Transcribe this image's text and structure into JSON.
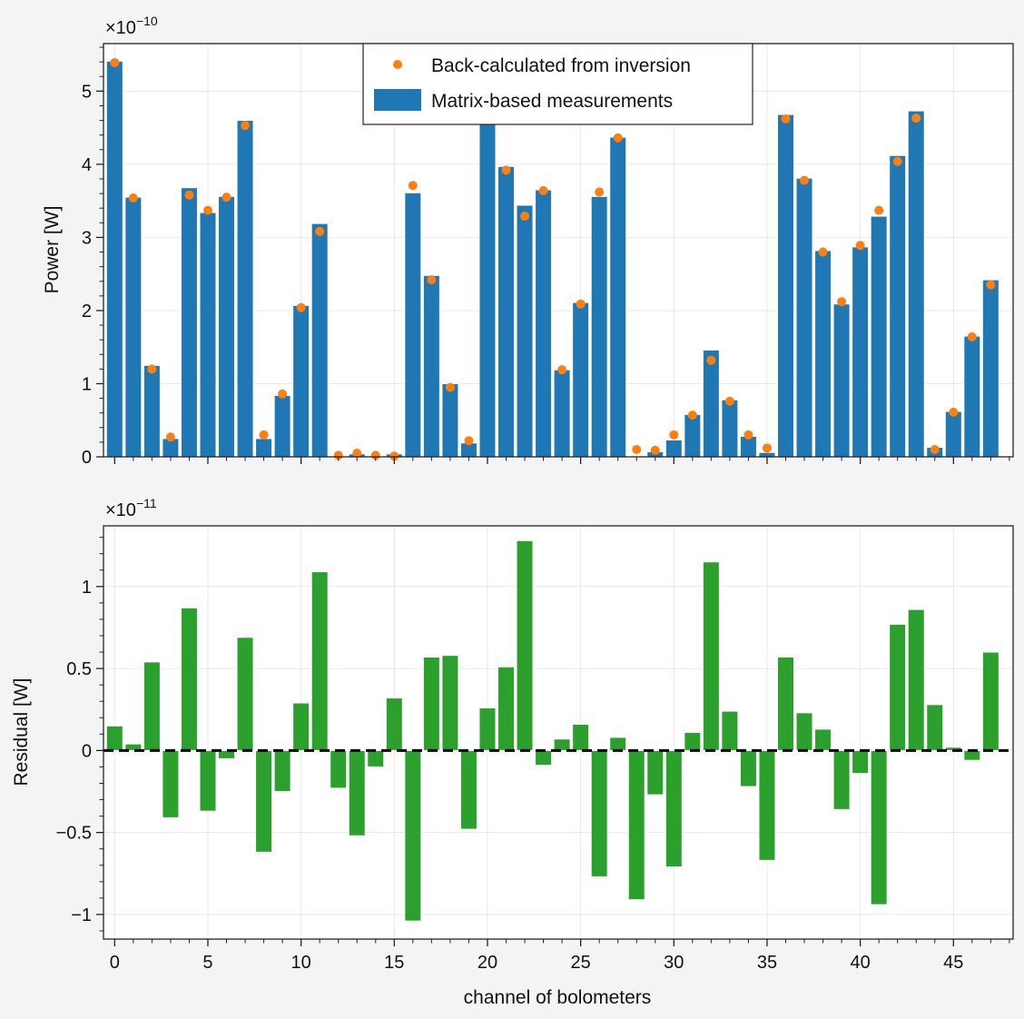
{
  "chart_data": [
    {
      "type": "bar",
      "panel": "top",
      "xlabel": "",
      "ylabel": "Power [W]",
      "offset_text": "×10",
      "offset_exponent": "−10",
      "xlim": [
        -0.6,
        48.2
      ],
      "ylim": [
        0,
        5.65
      ],
      "scale": 1e-10,
      "grid": true,
      "legend_placement": "top-center",
      "x_ticks": [
        0,
        5,
        10,
        15,
        20,
        25,
        30,
        35,
        40,
        45
      ],
      "y_ticks": [
        {
          "value": 0,
          "label": "0"
        },
        {
          "value": 1,
          "label": "1"
        },
        {
          "value": 2,
          "label": "2"
        },
        {
          "value": 3,
          "label": "3"
        },
        {
          "value": 4,
          "label": "4"
        },
        {
          "value": 5,
          "label": "5"
        }
      ],
      "categories": [
        0,
        1,
        2,
        3,
        4,
        5,
        6,
        7,
        8,
        9,
        10,
        11,
        12,
        13,
        14,
        15,
        16,
        17,
        18,
        19,
        20,
        21,
        22,
        23,
        24,
        25,
        26,
        27,
        28,
        29,
        30,
        31,
        32,
        33,
        34,
        35,
        36,
        37,
        38,
        39,
        40,
        41,
        42,
        43,
        44,
        45,
        46,
        47
      ],
      "series": [
        {
          "name": "Matrix-based measurements",
          "kind": "bar",
          "color": "#1f77b4",
          "values": [
            5.41,
            3.55,
            1.25,
            0.25,
            3.68,
            3.34,
            3.56,
            4.6,
            0.25,
            0.84,
            2.07,
            3.19,
            0.01,
            0.04,
            0.01,
            0.04,
            3.61,
            2.48,
            1.0,
            0.19,
            4.67,
            3.97,
            3.44,
            3.65,
            1.19,
            2.11,
            3.56,
            4.37,
            0.01,
            0.07,
            0.23,
            0.58,
            1.46,
            0.78,
            0.28,
            0.06,
            4.68,
            3.81,
            2.82,
            2.09,
            2.87,
            3.29,
            4.12,
            4.73,
            0.13,
            0.62,
            1.65,
            2.42
          ]
        },
        {
          "name": "Back-calculated from inversion",
          "kind": "scatter",
          "color": "#ff7f0e",
          "values": [
            5.39,
            3.54,
            1.2,
            0.27,
            3.58,
            3.37,
            3.55,
            4.53,
            0.3,
            0.86,
            2.04,
            3.08,
            0.02,
            0.05,
            0.02,
            0.01,
            3.71,
            2.42,
            0.95,
            0.22,
            4.65,
            3.92,
            3.29,
            3.64,
            1.19,
            2.09,
            3.62,
            4.36,
            0.1,
            0.09,
            0.3,
            0.57,
            1.32,
            0.76,
            0.3,
            0.12,
            4.62,
            3.78,
            2.8,
            2.12,
            2.89,
            3.37,
            4.04,
            4.63,
            0.1,
            0.61,
            1.64,
            2.35
          ]
        }
      ]
    },
    {
      "type": "bar",
      "panel": "bottom",
      "xlabel": "channel of bolometers",
      "ylabel": "Residual [W]",
      "offset_text": "×10",
      "offset_exponent": "−11",
      "xlim": [
        -0.6,
        48.2
      ],
      "ylim": [
        -1.15,
        1.37
      ],
      "scale": 1e-11,
      "grid": true,
      "zero_line": "dashed",
      "x_ticks": [
        {
          "value": 0,
          "label": "0"
        },
        {
          "value": 5,
          "label": "5"
        },
        {
          "value": 10,
          "label": "10"
        },
        {
          "value": 15,
          "label": "15"
        },
        {
          "value": 20,
          "label": "20"
        },
        {
          "value": 25,
          "label": "25"
        },
        {
          "value": 30,
          "label": "30"
        },
        {
          "value": 35,
          "label": "35"
        },
        {
          "value": 40,
          "label": "40"
        },
        {
          "value": 45,
          "label": "45"
        }
      ],
      "y_ticks": [
        {
          "value": -1,
          "label": "−1"
        },
        {
          "value": -0.5,
          "label": "−0.5"
        },
        {
          "value": 0,
          "label": "0"
        },
        {
          "value": 0.5,
          "label": "0.5"
        },
        {
          "value": 1,
          "label": "1"
        }
      ],
      "categories": [
        0,
        1,
        2,
        3,
        4,
        5,
        6,
        7,
        8,
        9,
        10,
        11,
        12,
        13,
        14,
        15,
        16,
        17,
        18,
        19,
        20,
        21,
        22,
        23,
        24,
        25,
        26,
        27,
        28,
        29,
        30,
        31,
        32,
        33,
        34,
        35,
        36,
        37,
        38,
        39,
        40,
        41,
        42,
        43,
        44,
        45,
        46,
        47
      ],
      "series": [
        {
          "name": "",
          "kind": "bar",
          "color": "#2ca02c",
          "values": [
            0.15,
            0.04,
            0.54,
            -0.41,
            0.87,
            -0.37,
            -0.05,
            0.69,
            -0.62,
            -0.25,
            0.29,
            1.09,
            -0.23,
            -0.52,
            -0.1,
            0.32,
            -1.04,
            0.57,
            0.58,
            -0.48,
            0.26,
            0.51,
            1.28,
            -0.09,
            0.07,
            0.16,
            -0.77,
            0.08,
            -0.91,
            -0.27,
            -0.71,
            0.11,
            1.15,
            0.24,
            -0.22,
            -0.67,
            0.57,
            0.23,
            0.13,
            -0.36,
            -0.14,
            -0.94,
            0.77,
            0.86,
            0.28,
            0.02,
            -0.06,
            0.6
          ]
        }
      ]
    }
  ]
}
